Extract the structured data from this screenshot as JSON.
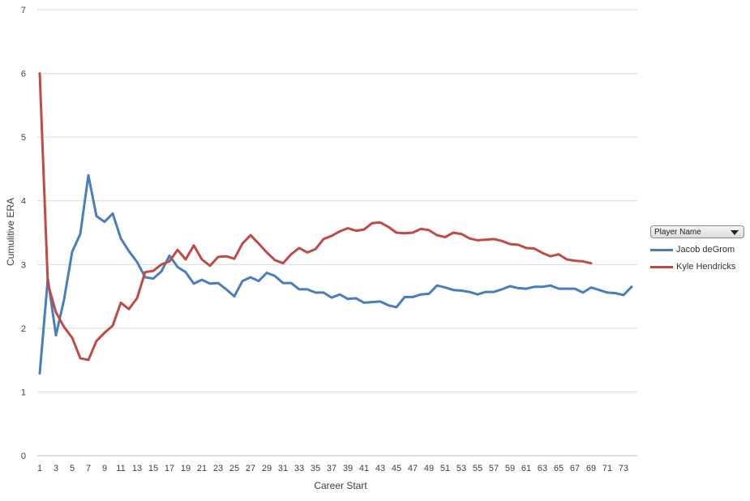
{
  "chart_data": {
    "type": "line",
    "title": "",
    "xlabel": "Career Start",
    "ylabel": "Cumulitive ERA",
    "ylim": [
      0,
      7
    ],
    "yticks": [
      0,
      1,
      2,
      3,
      4,
      5,
      6,
      7
    ],
    "xlim": [
      1,
      74
    ],
    "xtick_labels": [
      1,
      3,
      5,
      7,
      9,
      11,
      13,
      15,
      17,
      19,
      21,
      23,
      25,
      27,
      29,
      31,
      33,
      35,
      37,
      39,
      41,
      43,
      45,
      47,
      49,
      51,
      53,
      55,
      57,
      59,
      61,
      63,
      65,
      67,
      69,
      71,
      73
    ],
    "grid": true,
    "legend_position": "right",
    "legend_title": "Player Name",
    "series": [
      {
        "name": "Jacob deGrom",
        "color": "#4a7ebb",
        "values": [
          1.29,
          2.78,
          1.89,
          2.45,
          3.2,
          3.48,
          4.4,
          3.76,
          3.67,
          3.8,
          3.41,
          3.21,
          3.04,
          2.8,
          2.78,
          2.89,
          3.14,
          2.96,
          2.88,
          2.7,
          2.76,
          2.7,
          2.71,
          2.61,
          2.5,
          2.74,
          2.8,
          2.74,
          2.87,
          2.82,
          2.71,
          2.71,
          2.61,
          2.61,
          2.56,
          2.56,
          2.48,
          2.53,
          2.46,
          2.47,
          2.4,
          2.41,
          2.42,
          2.36,
          2.33,
          2.49,
          2.49,
          2.53,
          2.54,
          2.67,
          2.64,
          2.6,
          2.59,
          2.57,
          2.53,
          2.57,
          2.57,
          2.61,
          2.66,
          2.63,
          2.62,
          2.65,
          2.65,
          2.67,
          2.62,
          2.62,
          2.62,
          2.56,
          2.64,
          2.6,
          2.56,
          2.55,
          2.52,
          2.65
        ]
      },
      {
        "name": "Kyle Hendricks",
        "color": "#be4b48",
        "values": [
          6.0,
          2.7,
          2.25,
          2.02,
          1.85,
          1.53,
          1.5,
          1.8,
          1.93,
          2.04,
          2.4,
          2.3,
          2.47,
          2.88,
          2.9,
          3.0,
          3.05,
          3.23,
          3.08,
          3.3,
          3.08,
          2.98,
          3.12,
          3.13,
          3.09,
          3.33,
          3.46,
          3.33,
          3.19,
          3.07,
          3.02,
          3.16,
          3.26,
          3.19,
          3.24,
          3.4,
          3.45,
          3.52,
          3.57,
          3.53,
          3.55,
          3.65,
          3.66,
          3.59,
          3.5,
          3.49,
          3.5,
          3.56,
          3.54,
          3.46,
          3.43,
          3.5,
          3.48,
          3.41,
          3.38,
          3.39,
          3.4,
          3.37,
          3.32,
          3.31,
          3.26,
          3.25,
          3.18,
          3.13,
          3.16,
          3.08,
          3.06,
          3.05,
          3.02
        ]
      }
    ]
  }
}
